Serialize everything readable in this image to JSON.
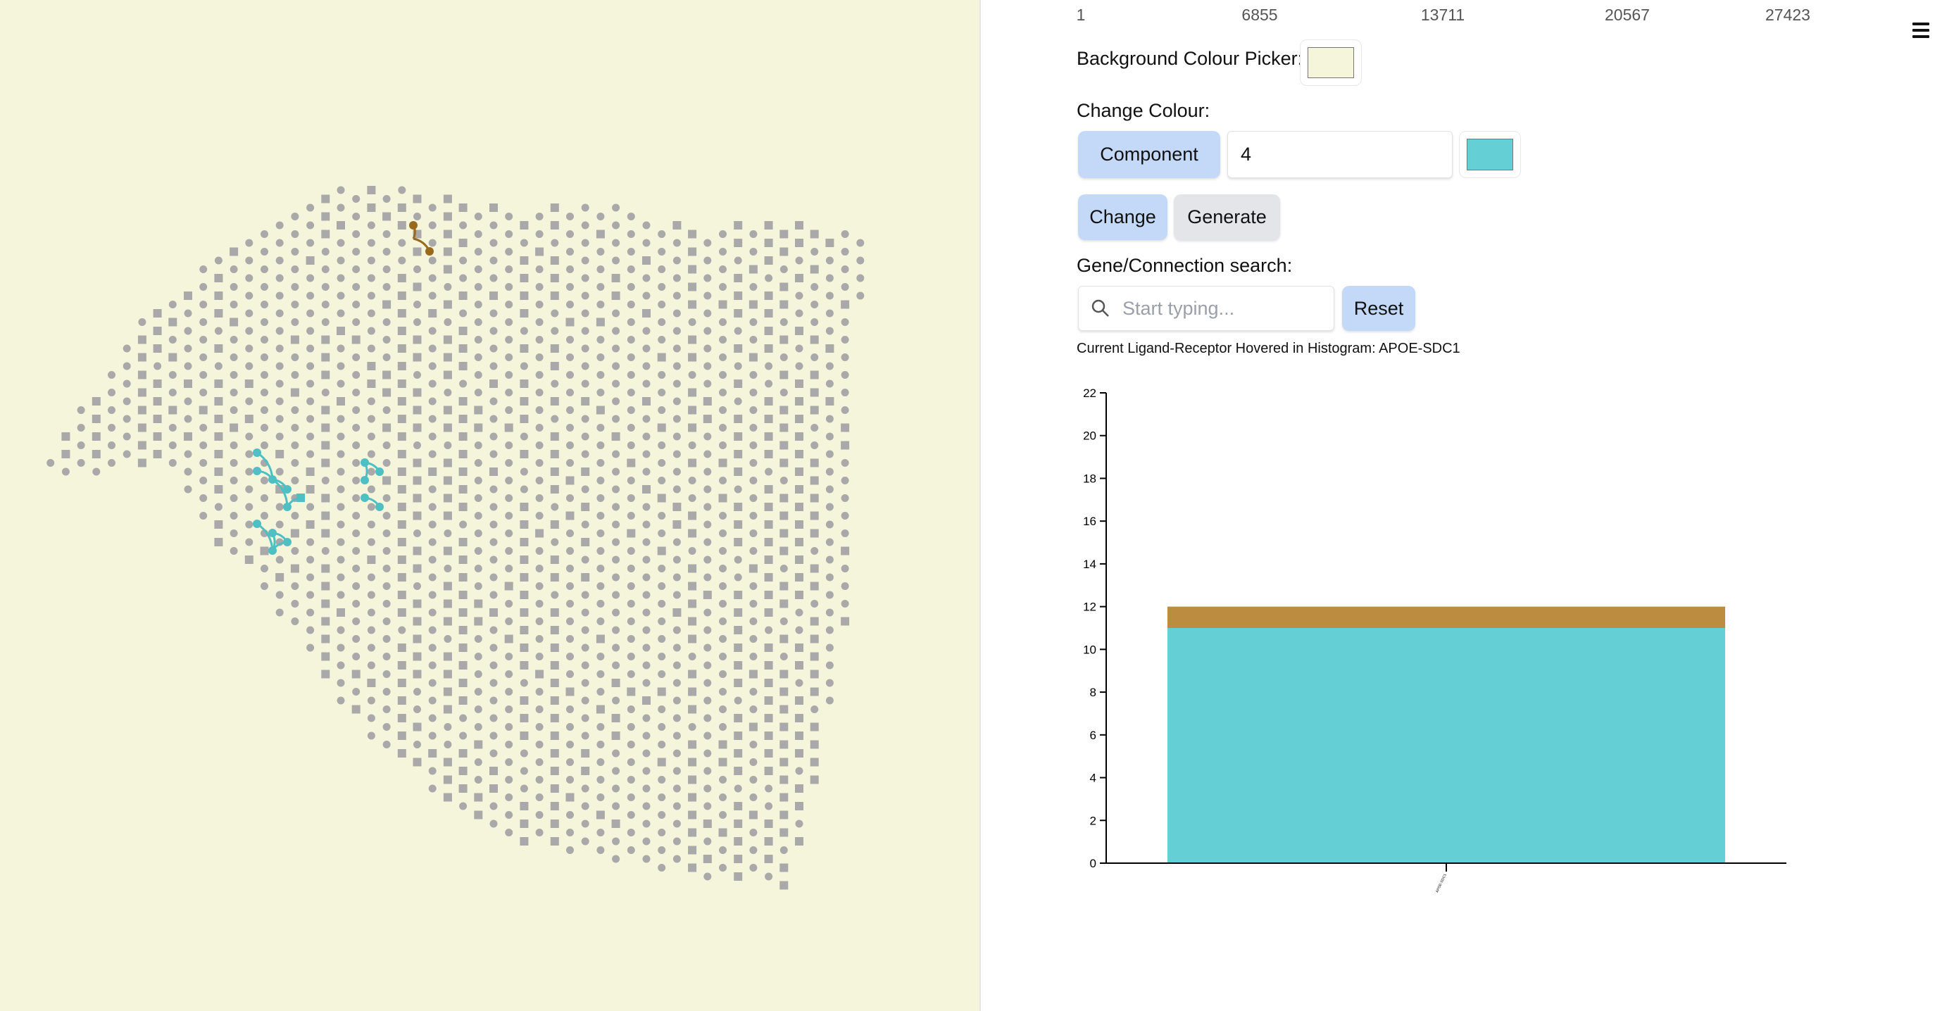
{
  "slider_ticks": [
    "1",
    "6855",
    "13711",
    "20567",
    "27423"
  ],
  "menu_icon": "hamburger-icon",
  "controls": {
    "background_label": "Background Colour Picker:",
    "background_color": "#f5f5dc",
    "change_colour_label": "Change Colour:",
    "component_button": "Component",
    "component_value": "4",
    "component_color": "#64d0d5",
    "change_button": "Change",
    "generate_button": "Generate",
    "search_label": "Gene/Connection search:",
    "search_placeholder": "Start typing...",
    "search_icon": "search-icon",
    "reset_button": "Reset",
    "hover_status": "Current Ligand-Receptor Hovered in Histogram: APOE-SDC1"
  },
  "spatial_plot": {
    "spot_color": "#a9a9a9",
    "component_colors": [
      "#4fbfc4",
      "#9a6a1c"
    ]
  },
  "chart_data": {
    "type": "bar",
    "stacked": true,
    "categories": [
      "APOE-SDC1"
    ],
    "series": [
      {
        "values": [
          11
        ],
        "color": "#64d0d5"
      },
      {
        "values": [
          1
        ],
        "color": "#bc8d41"
      }
    ],
    "ylim": [
      0,
      22
    ],
    "yticks": [
      "0",
      "2",
      "4",
      "6",
      "8",
      "10",
      "12",
      "14",
      "16",
      "18",
      "20",
      "22"
    ],
    "grid": false
  }
}
